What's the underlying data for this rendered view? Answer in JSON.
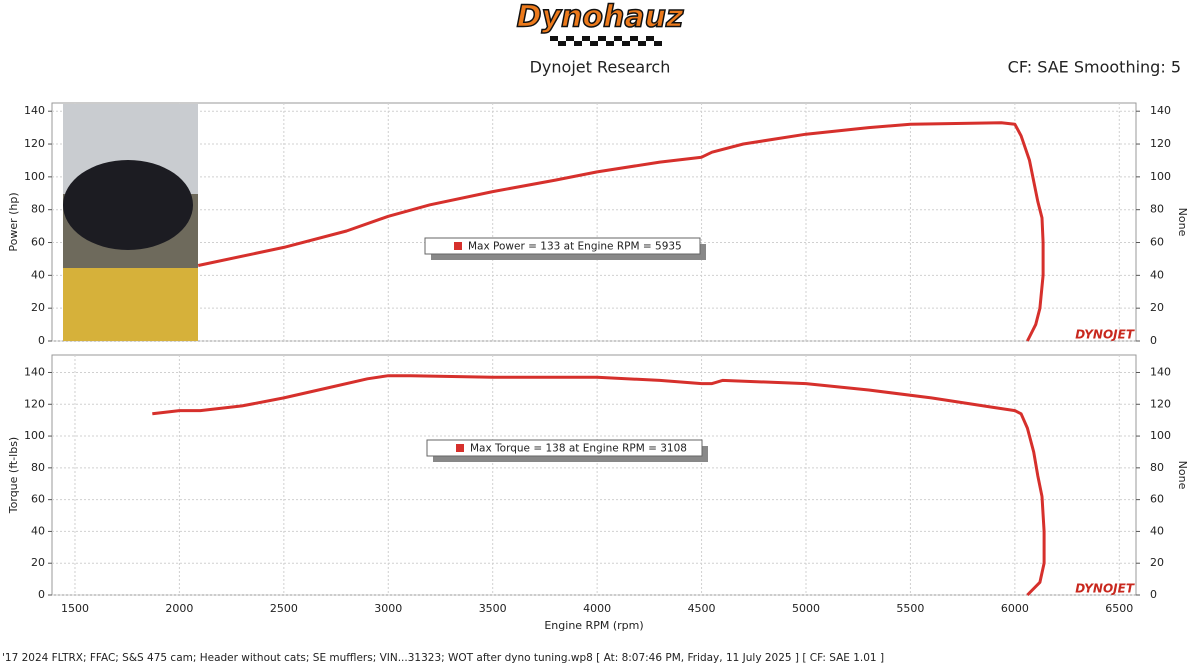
{
  "header": {
    "logo": "Dynohauz",
    "subtitle": "Dynojet Research",
    "settings": "CF: SAE Smoothing: 5"
  },
  "footer": "'17 2024 FLTRX; FFAC; S&S 475 cam; Header without cats; SE mufflers; VIN...31323; WOT after dyno tuning.wp8 [ At: 8:07:46 PM, Friday, 11 July 2025 ] [ CF: SAE 1.01 ]",
  "chart_data": [
    {
      "type": "line",
      "ylabel": "Power (hp)",
      "y2label": "None",
      "watermark": "DYNOJET",
      "annotation": "Max Power = 133 at Engine RPM = 5935",
      "xlim": [
        1390,
        6580
      ],
      "xticks": [
        1500,
        2000,
        2500,
        3000,
        3500,
        4000,
        4500,
        5000,
        5500,
        6000,
        6500
      ],
      "ylim": [
        0,
        145
      ],
      "yticks": [
        0,
        20,
        40,
        60,
        80,
        100,
        120,
        140
      ],
      "y2lim": [
        0,
        145
      ],
      "y2ticks": [
        0,
        20,
        40,
        60,
        80,
        100,
        120,
        140
      ],
      "grid": true,
      "series": [
        {
          "name": "Power",
          "color": "#d6302c",
          "x": [
            2090,
            2500,
            2800,
            3000,
            3200,
            3500,
            3800,
            4000,
            4300,
            4500,
            4550,
            4700,
            5000,
            5300,
            5500,
            5935,
            6000,
            6030,
            6070,
            6110,
            6130,
            6135,
            6135,
            6120,
            6100,
            6060
          ],
          "values": [
            46,
            57,
            67,
            76,
            83,
            91,
            98,
            103,
            109,
            112,
            115,
            120,
            126,
            130,
            132,
            133,
            132,
            125,
            110,
            85,
            75,
            60,
            40,
            20,
            10,
            0
          ]
        }
      ]
    },
    {
      "type": "line",
      "ylabel": "Torque (ft-lbs)",
      "y2label": "None",
      "xlabel": "Engine RPM (rpm)",
      "watermark": "DYNOJET",
      "annotation": "Max Torque = 138 at Engine RPM = 3108",
      "xlim": [
        1390,
        6580
      ],
      "xticks": [
        1500,
        2000,
        2500,
        3000,
        3500,
        4000,
        4500,
        5000,
        5500,
        6000,
        6500
      ],
      "ylim": [
        0,
        151
      ],
      "yticks": [
        0,
        20,
        40,
        60,
        80,
        100,
        120,
        140
      ],
      "y2lim": [
        0,
        151
      ],
      "y2ticks": [
        0,
        20,
        40,
        60,
        80,
        100,
        120,
        140
      ],
      "grid": true,
      "series": [
        {
          "name": "Torque",
          "color": "#d6302c",
          "x": [
            1870,
            2000,
            2100,
            2300,
            2500,
            2700,
            2900,
            3000,
            3108,
            3500,
            4000,
            4300,
            4500,
            4550,
            4600,
            5000,
            5300,
            5600,
            5900,
            6000,
            6030,
            6060,
            6090,
            6110,
            6130,
            6140,
            6140,
            6120,
            6060
          ],
          "values": [
            114,
            116,
            116,
            119,
            124,
            130,
            136,
            138,
            138,
            137,
            137,
            135,
            133,
            133,
            135,
            133,
            129,
            124,
            118,
            116,
            114,
            105,
            90,
            75,
            62,
            40,
            20,
            8,
            0
          ]
        }
      ]
    }
  ]
}
